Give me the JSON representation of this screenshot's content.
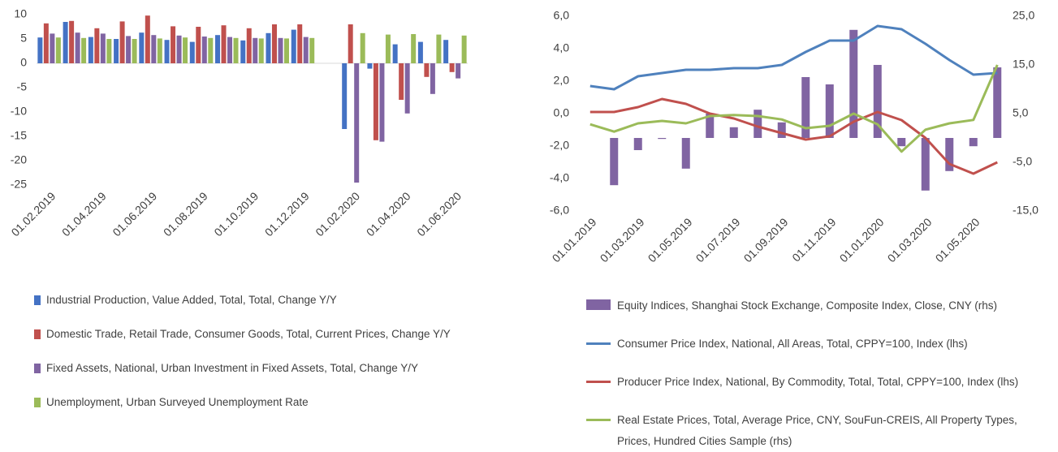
{
  "chart_data": [
    {
      "type": "bar",
      "categories": [
        "01.02.2019",
        null,
        "01.04.2019",
        null,
        "01.06.2019",
        null,
        "01.08.2019",
        null,
        "01.10.2019",
        null,
        "01.12.2019",
        null,
        "01.02.2020",
        null,
        "01.04.2020",
        null,
        "01.06.2020"
      ],
      "series": [
        {
          "name": "Industrial Production, Value Added, Total, Total, Change Y/Y",
          "color": "#4472c4",
          "values": [
            5.3,
            8.5,
            5.4,
            5.0,
            6.3,
            4.8,
            4.4,
            5.8,
            4.7,
            6.2,
            6.9,
            null,
            -13.5,
            -1.1,
            3.9,
            4.4,
            4.8
          ]
        },
        {
          "name": "Domestic Trade, Retail Trade, Consumer Goods, Total, Current Prices, Change Y/Y",
          "color": "#c0504d",
          "values": [
            8.2,
            8.7,
            7.2,
            8.6,
            9.8,
            7.6,
            7.5,
            7.8,
            7.2,
            8.0,
            8.0,
            null,
            8.0,
            -15.8,
            -7.5,
            -2.8,
            -1.8
          ]
        },
        {
          "name": "Fixed Assets, National, Urban Investment in Fixed Assets, Total, Change Y/Y",
          "color": "#8064a2",
          "values": [
            6.1,
            6.3,
            6.1,
            5.6,
            5.8,
            5.7,
            5.5,
            5.4,
            5.2,
            5.2,
            5.4,
            null,
            -24.5,
            -16.1,
            -10.3,
            -6.3,
            -3.1
          ]
        },
        {
          "name": "Unemployment, Urban Surveyed Unemployment Rate",
          "color": "#9bbb59",
          "values": [
            5.3,
            5.2,
            5.0,
            5.0,
            5.1,
            5.3,
            5.2,
            5.2,
            5.1,
            5.1,
            5.2,
            null,
            6.2,
            5.9,
            6.0,
            5.9,
            5.7
          ]
        }
      ],
      "ylim": [
        -25,
        10
      ],
      "yticks": [
        10,
        5,
        0,
        -5,
        -10,
        -15,
        -20,
        -25
      ],
      "grid": false,
      "legend": "bottom"
    },
    {
      "type": "combo",
      "categories": [
        "01.01.2019",
        null,
        "01.03.2019",
        null,
        "01.05.2019",
        null,
        "01.07.2019",
        null,
        "01.09.2019",
        null,
        "01.11.2019",
        null,
        "01.01.2020",
        null,
        "01.03.2020",
        null,
        "01.05.2020",
        null
      ],
      "series": [
        {
          "name": "Equity Indices, Shanghai Stock Exchange, Composite Index, Close, CNY (rhs)",
          "type": "bar",
          "axis": "y2",
          "color": "#8064a2",
          "values": [
            null,
            -9.7,
            -2.5,
            -0.2,
            -6.3,
            5.0,
            2.2,
            5.8,
            3.2,
            12.5,
            11.0,
            22.2,
            15.0,
            -1.7,
            -10.8,
            -6.8,
            -1.7,
            14.5
          ]
        },
        {
          "name": "Consumer Price Index, National, All Areas, Total, CPPY=100, Index (lhs)",
          "type": "line",
          "color": "#4f81bd",
          "values": [
            1.7,
            1.5,
            2.3,
            2.5,
            2.7,
            2.7,
            2.8,
            2.8,
            3.0,
            3.8,
            4.5,
            4.5,
            5.4,
            5.2,
            4.3,
            3.3,
            2.4,
            2.5
          ]
        },
        {
          "name": "Producer Price Index, National, By Commodity, Total, Total, CPPY=100, Index (lhs)",
          "type": "line",
          "color": "#c0504d",
          "values": [
            0.1,
            0.1,
            0.4,
            0.9,
            0.6,
            0.0,
            -0.3,
            -0.8,
            -1.2,
            -1.6,
            -1.4,
            -0.5,
            0.1,
            -0.4,
            -1.5,
            -3.1,
            -3.7,
            -3.0
          ]
        },
        {
          "name": "Real Estate Prices, Total, Average Price, CNY, SouFun-CREIS, All Property Types, Prices, Hundred Cities Sample (rhs)",
          "type": "line",
          "axis": "y2",
          "color": "#9bbb59",
          "values": [
            2.8,
            1.3,
            3.0,
            3.5,
            3.0,
            4.5,
            4.7,
            4.5,
            3.8,
            2.0,
            2.5,
            5.0,
            2.8,
            -2.8,
            1.7,
            3.0,
            3.7,
            15.0
          ]
        }
      ],
      "ylim": [
        -6,
        6
      ],
      "yticks": [
        {
          "value": 6,
          "label": "6,0"
        },
        {
          "value": 4,
          "label": "4,0"
        },
        {
          "value": 2,
          "label": "2,0"
        },
        {
          "value": 0,
          "label": "0,0"
        },
        {
          "value": -2,
          "label": "-2,0"
        },
        {
          "value": -4,
          "label": "-4,0"
        },
        {
          "value": -6,
          "label": "-6,0"
        }
      ],
      "y2lim": [
        -15,
        25
      ],
      "y2ticks": [
        {
          "value": 25,
          "label": "25,0"
        },
        {
          "value": 15,
          "label": "15,0"
        },
        {
          "value": 5,
          "label": "5,0"
        },
        {
          "value": -5,
          "label": "-5,0"
        },
        {
          "value": -15,
          "label": "-15,0"
        }
      ],
      "grid": false,
      "legend": "bottom"
    }
  ]
}
